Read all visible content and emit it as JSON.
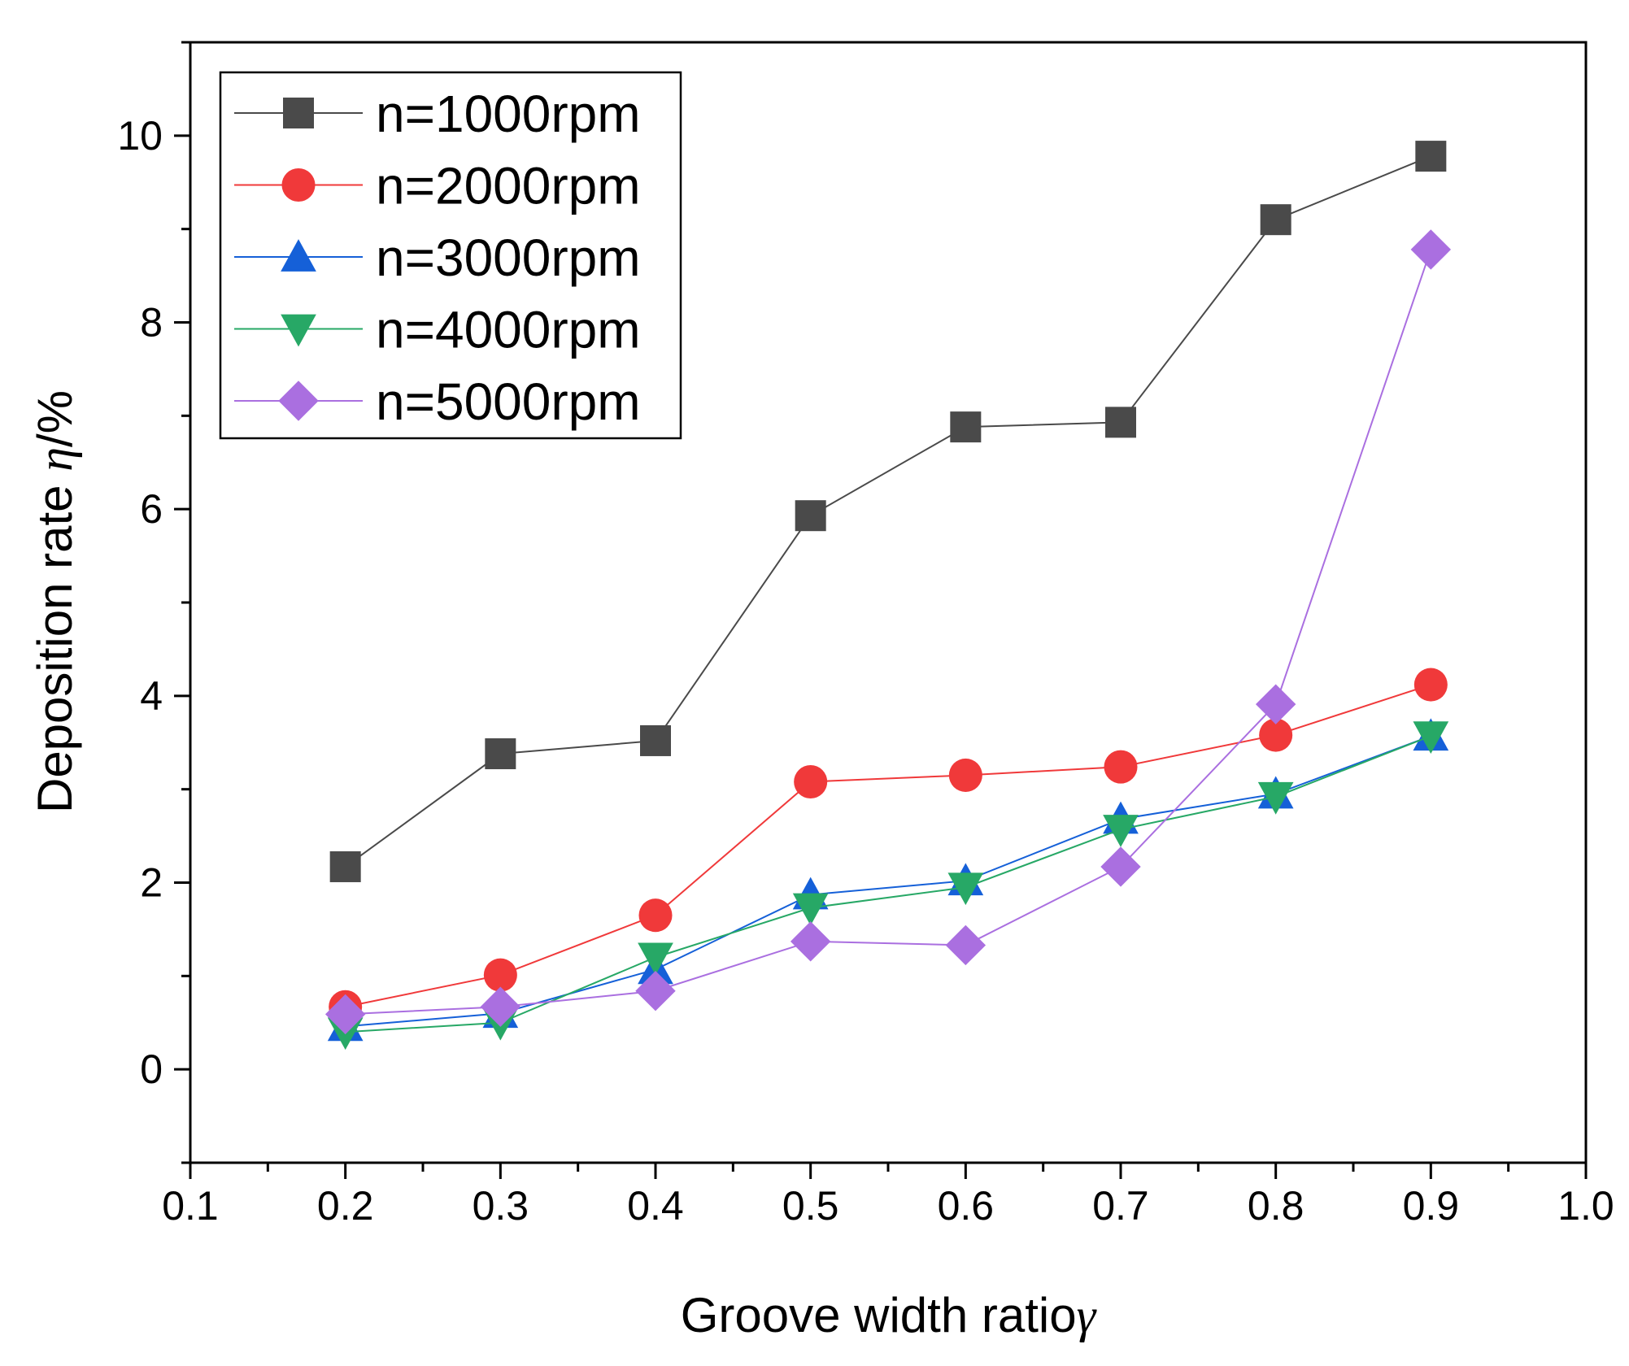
{
  "chart_data": {
    "type": "line",
    "xlabel": "Groove width ratio",
    "xlabel_symbol": "γ",
    "ylabel": "Deposition rate ",
    "ylabel_symbol": "η",
    "ylabel_unit": "/%",
    "xlim": [
      0.1,
      1.0
    ],
    "ylim": [
      -1,
      11
    ],
    "x_ticks": [
      "0.1",
      "0.2",
      "0.3",
      "0.4",
      "0.5",
      "0.6",
      "0.7",
      "0.8",
      "0.9",
      "1.0"
    ],
    "y_ticks": [
      "0",
      "2",
      "4",
      "6",
      "8",
      "10"
    ],
    "grid": false,
    "legend_position": "top-left",
    "x": [
      0.2,
      0.3,
      0.4,
      0.5,
      0.6,
      0.7,
      0.8,
      0.9
    ],
    "series": [
      {
        "name": "n=1000rpm",
        "color": "#4a4a4a",
        "marker": "square",
        "values": [
          2.17,
          3.38,
          3.52,
          5.93,
          6.88,
          6.93,
          9.1,
          9.78
        ]
      },
      {
        "name": "n=2000rpm",
        "color": "#f0393a",
        "marker": "circle",
        "values": [
          0.67,
          1.01,
          1.65,
          3.08,
          3.15,
          3.24,
          3.58,
          4.12
        ]
      },
      {
        "name": "n=3000rpm",
        "color": "#1560d8",
        "marker": "triangle-up",
        "values": [
          0.46,
          0.6,
          1.07,
          1.87,
          2.02,
          2.68,
          2.95,
          3.57
        ]
      },
      {
        "name": "n=4000rpm",
        "color": "#27a866",
        "marker": "triangle-down",
        "values": [
          0.4,
          0.5,
          1.2,
          1.73,
          1.95,
          2.57,
          2.92,
          3.57
        ]
      },
      {
        "name": "n=5000rpm",
        "color": "#aa6fe0",
        "marker": "diamond",
        "values": [
          0.59,
          0.67,
          0.84,
          1.37,
          1.33,
          2.17,
          3.91,
          8.78
        ]
      }
    ]
  }
}
